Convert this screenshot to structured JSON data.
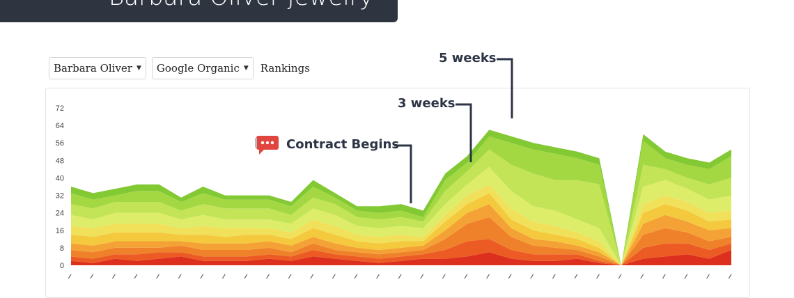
{
  "banner": {
    "title": "Barbara Oliver Jewelry"
  },
  "controls": {
    "client_select": "Barbara Oliver",
    "source_select": "Google Organic",
    "metric_label": "Rankings"
  },
  "annotations": {
    "contract": "Contract Begins",
    "three_weeks": "3 weeks",
    "five_weeks": "5 weeks"
  },
  "icons": {
    "annotation_marker": "chat-bubble-icon"
  },
  "colors": {
    "annotation_text": "#2c3445",
    "banner_bg": "#2f3441",
    "chat_icon": "#e0463e"
  },
  "chart_data": {
    "type": "area",
    "stacked": true,
    "ylim": [
      0,
      72
    ],
    "yticks": [
      0,
      8,
      16,
      24,
      32,
      40,
      48,
      56,
      64,
      72
    ],
    "grid": false,
    "legend": "none",
    "x_count": 31,
    "layer_colors": [
      "#dc2f1e",
      "#eb5b23",
      "#f0812b",
      "#f4a236",
      "#f5c93d",
      "#f0e05a",
      "#dded6a",
      "#c3e456",
      "#a3d843",
      "#82c934"
    ],
    "layers": [
      [
        2,
        1,
        3,
        2,
        3,
        4,
        2,
        2,
        2,
        3,
        2,
        4,
        3,
        2,
        1,
        2,
        3,
        3,
        4,
        6,
        3,
        2,
        2,
        3,
        1,
        0,
        3,
        4,
        5,
        3,
        7
      ],
      [
        2,
        2,
        2,
        3,
        3,
        2,
        2,
        2,
        2,
        2,
        2,
        3,
        2,
        2,
        2,
        2,
        2,
        4,
        7,
        6,
        4,
        3,
        3,
        2,
        1,
        0,
        5,
        6,
        5,
        4,
        3
      ],
      [
        3,
        3,
        3,
        3,
        2,
        3,
        3,
        3,
        3,
        3,
        2,
        3,
        2,
        2,
        2,
        2,
        2,
        5,
        8,
        10,
        6,
        4,
        3,
        2,
        2,
        0,
        6,
        7,
        5,
        4,
        3
      ],
      [
        3,
        3,
        3,
        3,
        3,
        2,
        3,
        3,
        3,
        3,
        3,
        3,
        3,
        2,
        2,
        2,
        2,
        4,
        5,
        6,
        4,
        3,
        3,
        2,
        2,
        0,
        5,
        6,
        5,
        5,
        4
      ],
      [
        4,
        4,
        4,
        4,
        4,
        3,
        4,
        3,
        4,
        3,
        3,
        4,
        4,
        3,
        3,
        3,
        2,
        4,
        4,
        5,
        4,
        4,
        3,
        3,
        2,
        0,
        5,
        5,
        5,
        4,
        4
      ],
      [
        4,
        4,
        4,
        4,
        4,
        3,
        4,
        4,
        3,
        3,
        3,
        4,
        4,
        3,
        3,
        3,
        2,
        3,
        4,
        4,
        5,
        4,
        4,
        3,
        3,
        0,
        4,
        4,
        4,
        4,
        4
      ],
      [
        5,
        4,
        5,
        5,
        5,
        4,
        5,
        4,
        4,
        4,
        4,
        5,
        5,
        4,
        4,
        4,
        4,
        5,
        5,
        8,
        8,
        7,
        7,
        6,
        6,
        0,
        8,
        7,
        6,
        6,
        7
      ],
      [
        5,
        5,
        5,
        5,
        5,
        4,
        5,
        5,
        5,
        5,
        4,
        5,
        5,
        4,
        4,
        4,
        3,
        6,
        6,
        8,
        12,
        15,
        14,
        18,
        20,
        0,
        10,
        5,
        5,
        7,
        8
      ],
      [
        5,
        4,
        3,
        5,
        5,
        4,
        5,
        4,
        4,
        4,
        4,
        5,
        3,
        3,
        3,
        3,
        2,
        5,
        4,
        6,
        10,
        11,
        12,
        10,
        9,
        0,
        11,
        5,
        6,
        7,
        10
      ],
      [
        3,
        3,
        3,
        3,
        3,
        2,
        3,
        2,
        2,
        2,
        2,
        3,
        2,
        2,
        3,
        3,
        3,
        3,
        3,
        3,
        3,
        3,
        3,
        3,
        3,
        0,
        3,
        3,
        3,
        3,
        3
      ]
    ]
  }
}
